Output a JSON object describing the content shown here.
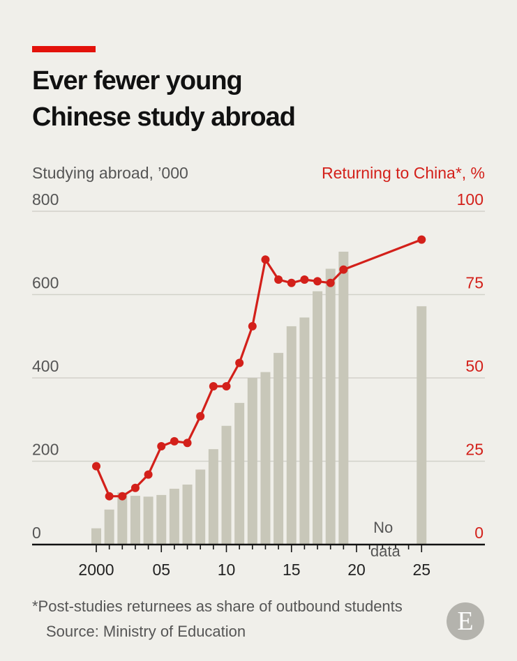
{
  "title_lines": [
    "Ever fewer young",
    "Chinese study abroad"
  ],
  "footnote": "*Post-studies returnees as share of outbound students",
  "source": "Source: Ministry of Education",
  "logo_letter": "E",
  "colors": {
    "accent": "#e3120b",
    "bars": "#c8c7b9",
    "line": "#d3201a",
    "left_axis_text": "#555555",
    "background": "#f0efea"
  },
  "chart_data": {
    "type": "bar+line",
    "left_axis": {
      "label": "Studying abroad, ’000",
      "ticks": [
        0,
        200,
        400,
        600,
        800
      ],
      "range": [
        0,
        800
      ]
    },
    "right_axis": {
      "label": "Returning to China*, %",
      "ticks": [
        0,
        25,
        50,
        75,
        100
      ],
      "range": [
        0,
        100
      ]
    },
    "x_axis": {
      "range": [
        1999,
        2027
      ],
      "ticks": [
        2000,
        2005,
        2010,
        2015,
        2020,
        2025
      ],
      "tick_labels": [
        "2000",
        "05",
        "10",
        "15",
        "20",
        "25"
      ]
    },
    "bars": {
      "axis": "left",
      "x": [
        2000,
        2001,
        2002,
        2003,
        2004,
        2005,
        2006,
        2007,
        2008,
        2009,
        2010,
        2011,
        2012,
        2013,
        2014,
        2015,
        2016,
        2017,
        2018,
        2019,
        2025
      ],
      "values": [
        39,
        84,
        125,
        117,
        115,
        119,
        134,
        144,
        180,
        229,
        285,
        340,
        400,
        414,
        460,
        524,
        545,
        608,
        662,
        703,
        572
      ]
    },
    "line": {
      "axis": "right",
      "x": [
        2000,
        2001,
        2002,
        2003,
        2004,
        2005,
        2006,
        2007,
        2008,
        2009,
        2010,
        2011,
        2012,
        2013,
        2014,
        2015,
        2016,
        2017,
        2018,
        2019,
        2025
      ],
      "values": [
        23.5,
        14.5,
        14.5,
        17,
        21,
        29.5,
        31,
        30.5,
        38.5,
        47.5,
        47.5,
        54.5,
        65.5,
        85.5,
        79.5,
        78.5,
        79.5,
        79,
        78.5,
        82.5,
        91.5
      ]
    },
    "annotation": {
      "lines": [
        "No",
        "data"
      ],
      "x": 2022,
      "value": 8
    }
  }
}
